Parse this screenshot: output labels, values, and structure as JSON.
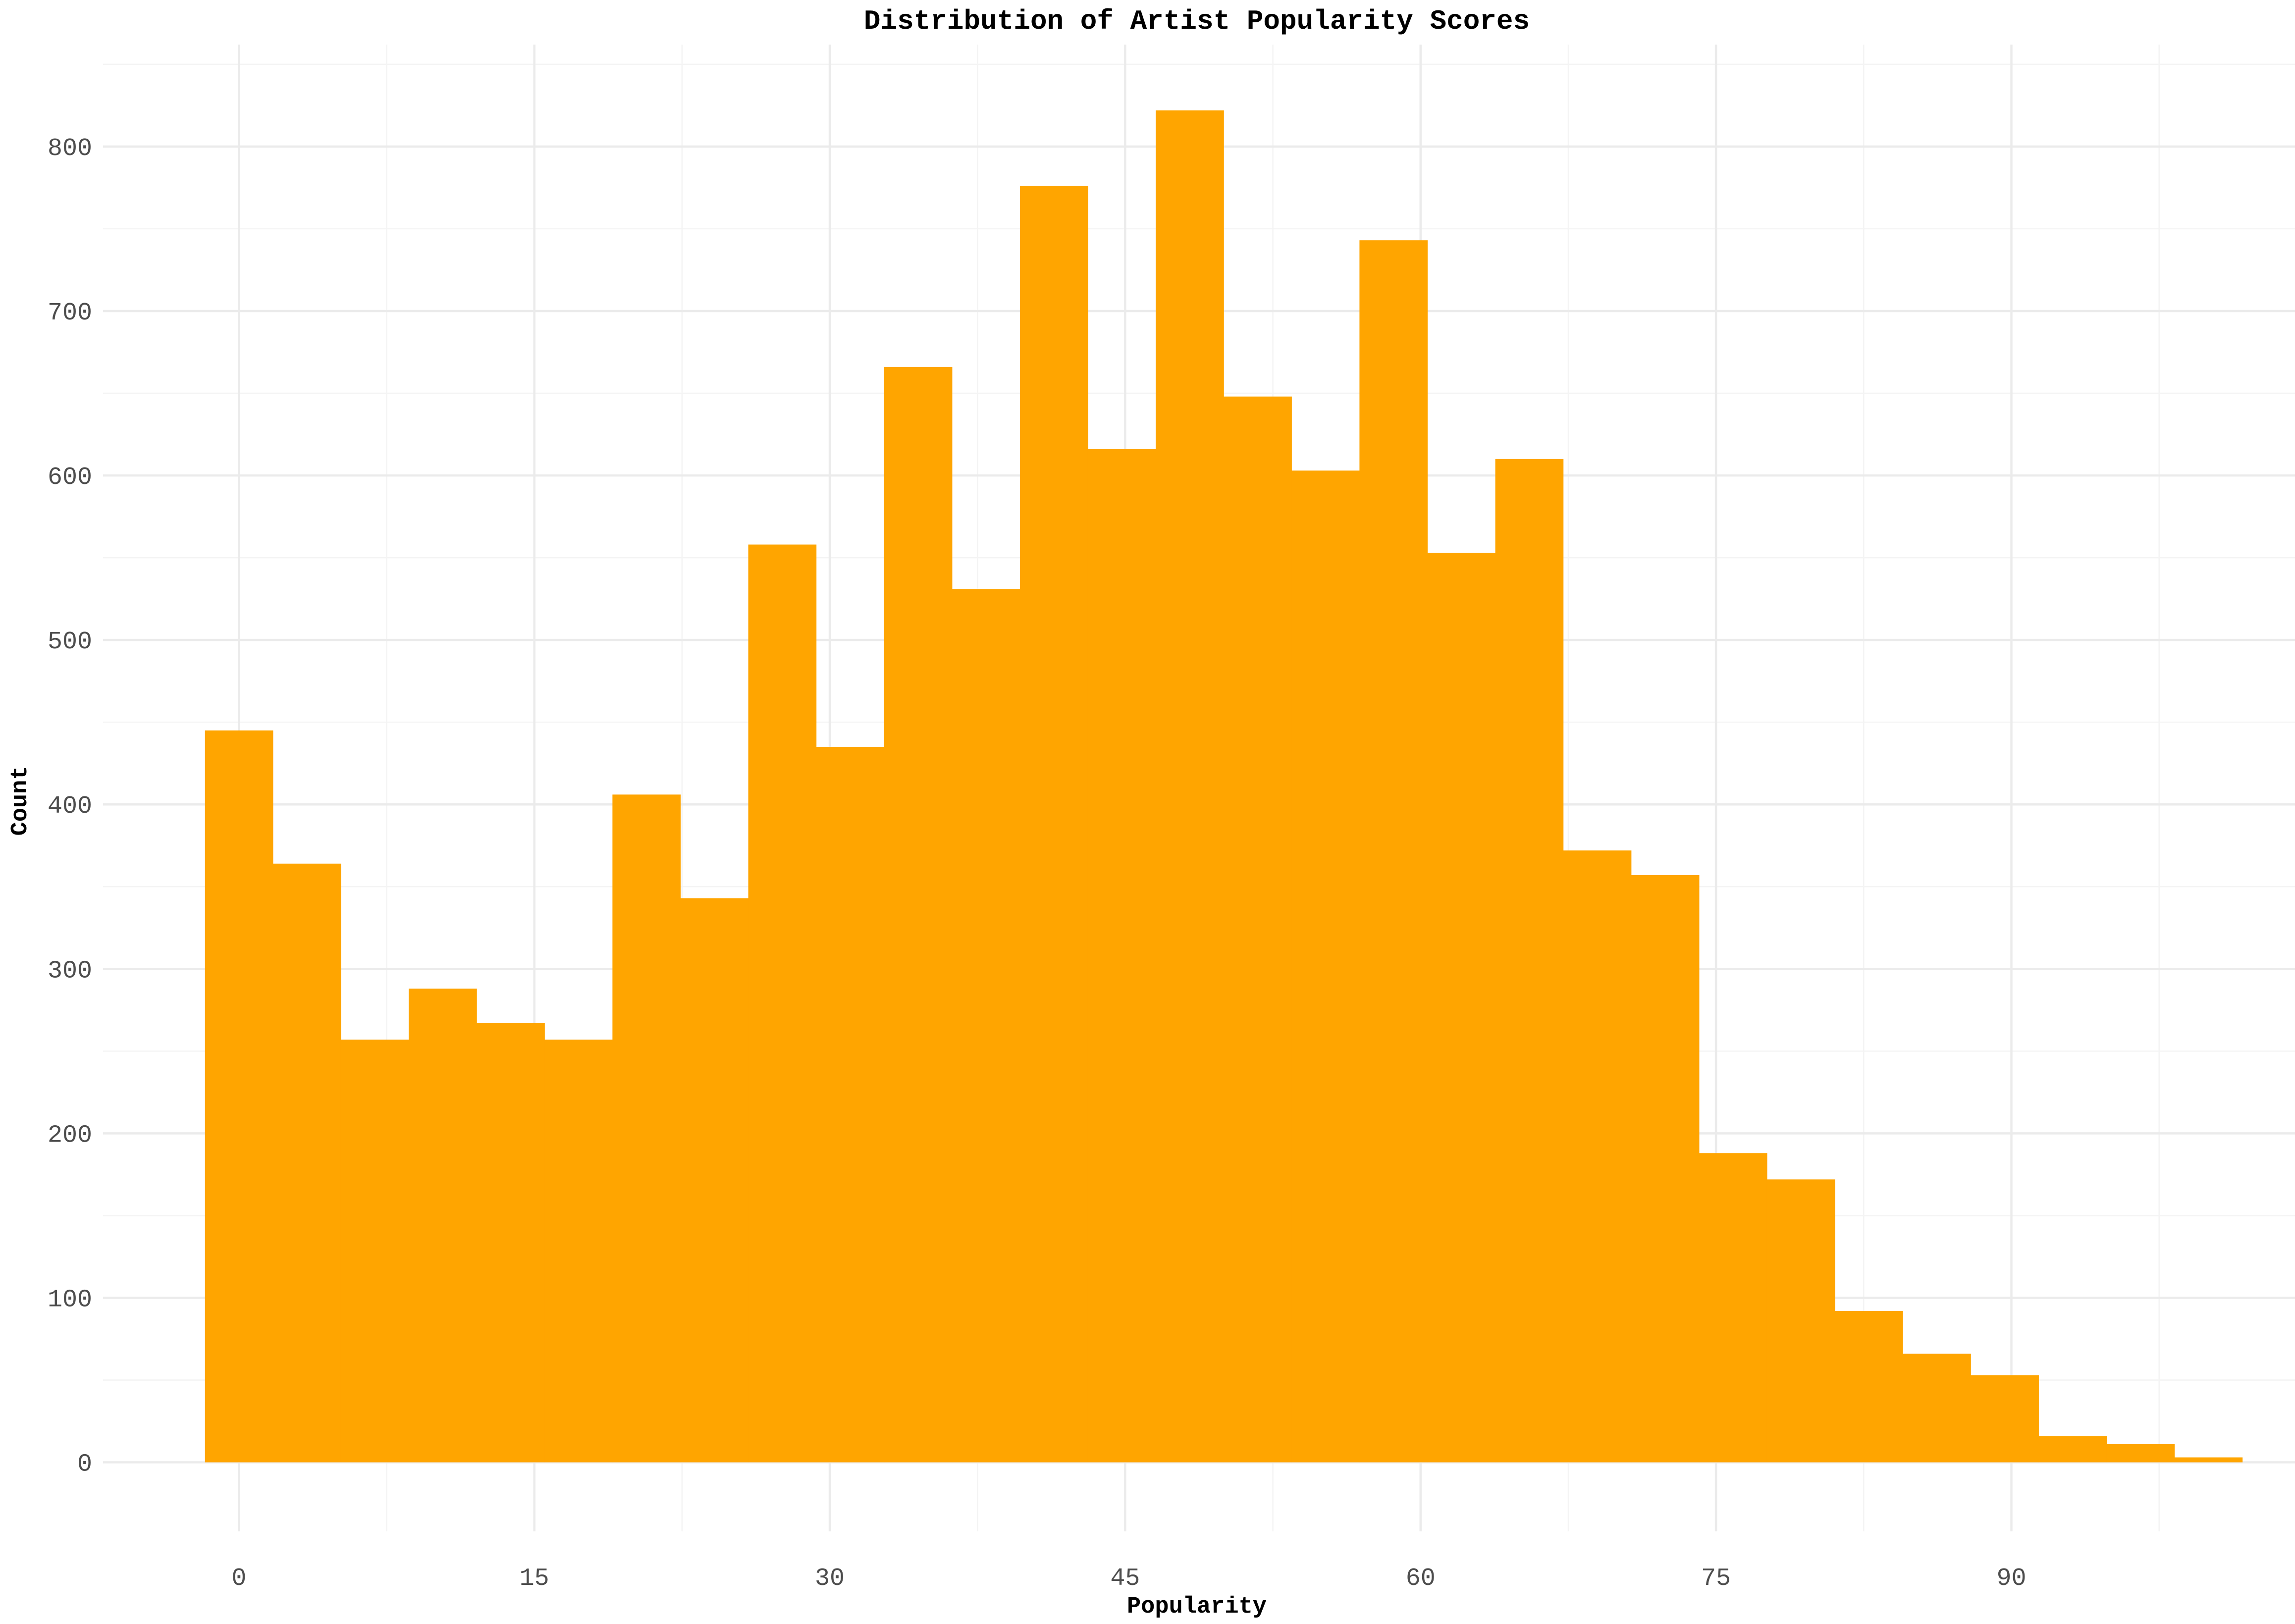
{
  "chart_data": {
    "type": "bar",
    "subtype": "histogram",
    "title": "Distribution of Artist Popularity Scores",
    "xlabel": "Popularity",
    "ylabel": "Count",
    "fill_color": "#FFA500",
    "grid": true,
    "legend": "none",
    "xlim": [
      -6.9,
      104.4
    ],
    "ylim": [
      -42,
      862
    ],
    "x_ticks": [
      0,
      15,
      30,
      45,
      60,
      75,
      90
    ],
    "x_tick_labels": [
      "0",
      "15",
      "30",
      "45",
      "60",
      "75",
      "90"
    ],
    "y_ticks": [
      0,
      100,
      200,
      300,
      400,
      500,
      600,
      700,
      800
    ],
    "y_tick_labels": [
      "0",
      "100",
      "200",
      "300",
      "400",
      "500",
      "600",
      "700",
      "800"
    ],
    "bin_width": 3.448,
    "bins": [
      {
        "start": -1.724,
        "end": 1.724,
        "count": 445
      },
      {
        "start": 1.724,
        "end": 5.172,
        "count": 364
      },
      {
        "start": 5.172,
        "end": 8.621,
        "count": 257
      },
      {
        "start": 8.621,
        "end": 12.069,
        "count": 288
      },
      {
        "start": 12.069,
        "end": 15.517,
        "count": 267
      },
      {
        "start": 15.517,
        "end": 18.966,
        "count": 257
      },
      {
        "start": 18.966,
        "end": 22.414,
        "count": 406
      },
      {
        "start": 22.414,
        "end": 25.862,
        "count": 343
      },
      {
        "start": 25.862,
        "end": 29.31,
        "count": 558
      },
      {
        "start": 29.31,
        "end": 32.759,
        "count": 435
      },
      {
        "start": 32.759,
        "end": 36.207,
        "count": 666
      },
      {
        "start": 36.207,
        "end": 39.655,
        "count": 531
      },
      {
        "start": 39.655,
        "end": 43.103,
        "count": 776
      },
      {
        "start": 43.103,
        "end": 46.552,
        "count": 616
      },
      {
        "start": 46.552,
        "end": 50.0,
        "count": 822
      },
      {
        "start": 50.0,
        "end": 53.448,
        "count": 648
      },
      {
        "start": 53.448,
        "end": 56.897,
        "count": 603
      },
      {
        "start": 56.897,
        "end": 60.345,
        "count": 743
      },
      {
        "start": 60.345,
        "end": 63.793,
        "count": 553
      },
      {
        "start": 63.793,
        "end": 67.241,
        "count": 610
      },
      {
        "start": 67.241,
        "end": 70.69,
        "count": 372
      },
      {
        "start": 70.69,
        "end": 74.138,
        "count": 357
      },
      {
        "start": 74.138,
        "end": 77.586,
        "count": 188
      },
      {
        "start": 77.586,
        "end": 81.034,
        "count": 172
      },
      {
        "start": 81.034,
        "end": 84.483,
        "count": 92
      },
      {
        "start": 84.483,
        "end": 87.931,
        "count": 66
      },
      {
        "start": 87.931,
        "end": 91.379,
        "count": 53
      },
      {
        "start": 91.379,
        "end": 94.828,
        "count": 16
      },
      {
        "start": 94.828,
        "end": 98.276,
        "count": 11
      },
      {
        "start": 98.276,
        "end": 101.724,
        "count": 3
      }
    ]
  }
}
